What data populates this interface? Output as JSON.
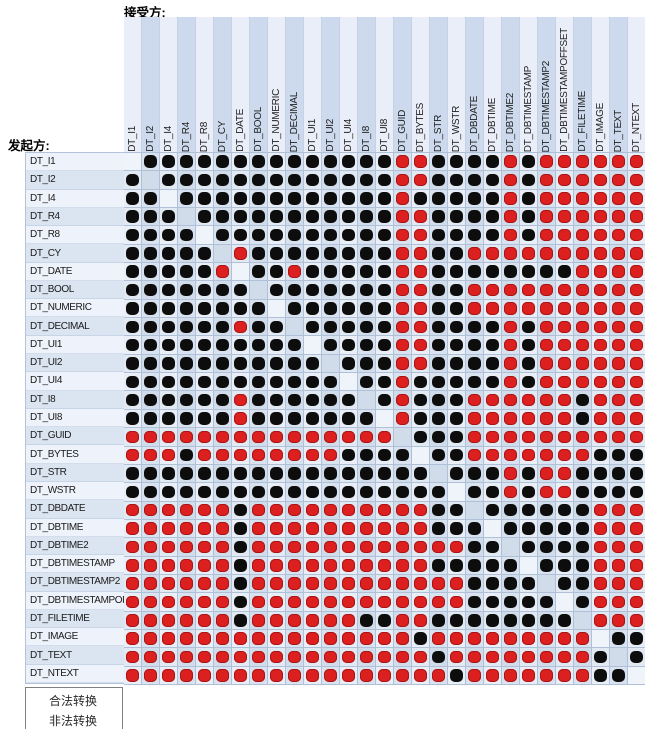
{
  "header": {
    "receiver_label": "接受方:",
    "initiator_label": "发起方:"
  },
  "legend": {
    "items": [
      {
        "key": "legal",
        "label": "合法转换",
        "color": "#0d0d0d"
      },
      {
        "key": "illegal",
        "label": "非法转换",
        "color": "#dc1f1f"
      }
    ]
  },
  "colors": {
    "legal_dot": "#0d0d0d",
    "illegal_dot": "#dc1f1f",
    "grid_line": "#b0c0d8",
    "cell_light": "#eaeff7",
    "cell_dark": "#d9e3f0",
    "label_light": "#eef2fa",
    "label_dark": "#dbe5f1"
  },
  "chart_data": {
    "type": "heatmap",
    "title": "",
    "xlabel": "接受方:",
    "ylabel": "发起方:",
    "legend_position": "bottom-left",
    "cell_codes": {
      "B": "合法转换",
      "R": "非法转换",
      "D": "对角线(同类型,无标记)"
    },
    "x_labels": [
      "DT_I1",
      "DT_I2",
      "DT_I4",
      "DT_R4",
      "DT_R8",
      "DT_CY",
      "DT_DATE",
      "DT_BOOL",
      "DT_NUMERIC",
      "DT_DECIMAL",
      "DT_UI1",
      "DT_UI2",
      "DT_UI4",
      "DT_I8",
      "DT_UI8",
      "DT_GUID",
      "DT_BYTES",
      "DT_STR",
      "DT_WSTR",
      "DT_DBDATE",
      "DT_DBTIME",
      "DT_DBTIME2",
      "DT_DBTIMESTAMP",
      "DT_DBTIMESTAMP2",
      "DT_DBTIMESTAMPOFFSET",
      "DT_FILETIME",
      "DT_IMAGE",
      "DT_TEXT",
      "DT_NTEXT"
    ],
    "y_labels": [
      "DT_I1",
      "DT_I2",
      "DT_I4",
      "DT_R4",
      "DT_R8",
      "DT_CY",
      "DT_DATE",
      "DT_BOOL",
      "DT_NUMERIC",
      "DT_DECIMAL",
      "DT_UI1",
      "DT_UI2",
      "DT_UI4",
      "DT_I8",
      "DT_UI8",
      "DT_GUID",
      "DT_BYTES",
      "DT_STR",
      "DT_WSTR",
      "DT_DBDATE",
      "DT_DBTIME",
      "DT_DBTIME2",
      "DT_DBTIMESTAMP",
      "DT_DBTIMESTAMP2",
      "DT_DBTIMESTAMPOFFSET",
      "DT_FILETIME",
      "DT_IMAGE",
      "DT_TEXT",
      "DT_NTEXT"
    ],
    "rows": [
      "DBBBBBBBBBBBBBBRRBBBBRBRRRRRR",
      "BDBBBBBBBBBBBBBRRBBBBRBRRRRRR",
      "BBDBBBBBBBBBBBBRBBBBBRBRRRRRR",
      "BBBDBBBBBBBBBBBRRBBBBRBRRRRRR",
      "BBBBDBBBBBBBBBBRRBBBBRBRRRRRR",
      "BBBBBDRBBBBBBBBRRBBRRRRRRRRRR",
      "BBBBBRDBBRBBBBBRRBBBBBBBBRRRR",
      "BBBBBBBDBBBBBBBRRBBRRRRRRRRRR",
      "BBBBBBBBDBBBBBBRRBBRRRRRRRRRR",
      "BBBBBBRBBDBBBBBRRBBBBRBRRRRRR",
      "BBBBBBBBBBDBBBBRRBBBBRBRRRRRR",
      "BBBBBBBBBBBDBBBRRBBBBRBRRRRRR",
      "BBBBBBBBBBBBDBBRBBBBBRBRRRRRR",
      "BBBBBBRBBBBBBDBRBBBRRRRRRBRRR",
      "BBBBBBRBBBBBBBDRBBBRRRRRRBRRR",
      "RRRRRRRRRRRRRRRDBBBRRRRRRRRRR",
      "RRRBRRRRRRRRBBBBDBBRRRRRRRBBB",
      "BBBBBBBBBBBBBBBBBDBBBRBRRBBBB",
      "BBBBBBBBBBBBBBBBBBDBBRBRRBBBB",
      "RRRRRRBRRRRRRRRRRBBDBBBBBBRRR",
      "RRRRRRBRRRRRRRRRRBBBDBBBBBRRR",
      "RRRRRRBRRRRRRRRRRRRBBDBBBBRRR",
      "RRRRRRBRRRRRRRRRRBBBBBDBBBRRR",
      "RRRRRRBRRRRRRRRRRRRBBBBDBBRRR",
      "RRRRRRBRRRRRRRRRRRRBBBBBDBRRR",
      "RRRRRRBRRRRRRBBRRBBBBBBBBDRRR",
      "RRRRRRRRRRRRRRRRBRRRRRRRRRDBB",
      "RRRRRRRRRRRRRRRRRBRRRRRRRRBDB",
      "RRRRRRRRRRRRRRRRRRBRRRRRRRBBD"
    ]
  }
}
